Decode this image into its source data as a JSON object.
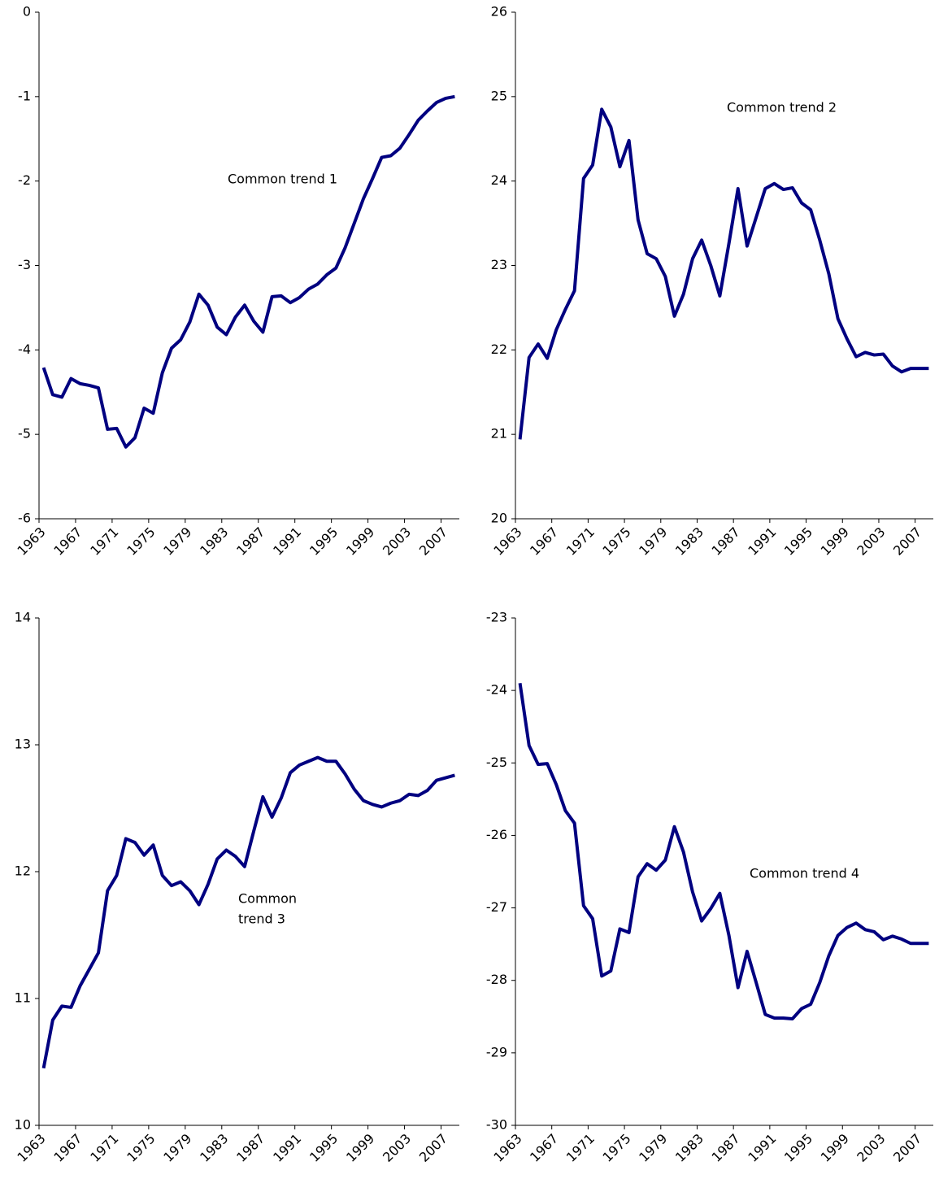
{
  "chart_data": [
    {
      "type": "line",
      "annotation": [
        "Common trend 1"
      ],
      "categories": [
        "1963",
        null,
        null,
        null,
        "1967",
        null,
        null,
        null,
        "1971",
        null,
        null,
        null,
        "1975",
        null,
        null,
        null,
        "1979",
        null,
        null,
        null,
        "1983",
        null,
        null,
        null,
        "1987",
        null,
        null,
        null,
        "1991",
        null,
        null,
        null,
        "1995",
        null,
        null,
        null,
        "1999",
        null,
        null,
        null,
        "2003",
        null,
        null,
        null,
        "2007",
        null
      ],
      "series": [
        {
          "color": "#000080",
          "values": [
            -4.21,
            -4.53,
            -4.56,
            -4.34,
            -4.4,
            -4.42,
            -4.45,
            -4.94,
            -4.93,
            -5.15,
            -5.04,
            -4.69,
            -4.75,
            -4.27,
            -3.98,
            -3.88,
            -3.67,
            -3.34,
            -3.47,
            -3.73,
            -3.82,
            -3.61,
            -3.47,
            -3.66,
            -3.79,
            -3.37,
            -3.36,
            -3.44,
            -3.38,
            -3.28,
            -3.22,
            -3.11,
            -3.03,
            -2.79,
            -2.5,
            -2.21,
            -1.97,
            -1.72,
            -1.7,
            -1.61,
            -1.45,
            -1.28,
            -1.17,
            -1.07,
            -1.02,
            -1.0
          ]
        }
      ],
      "ylim": [
        -6,
        0
      ],
      "yticks": [
        -6,
        -5,
        -4,
        -3,
        -2,
        -1,
        0
      ],
      "grid": false
    },
    {
      "type": "line",
      "annotation": [
        "Common trend 2"
      ],
      "categories": [
        "1963",
        null,
        null,
        null,
        "1967",
        null,
        null,
        null,
        "1971",
        null,
        null,
        null,
        "1975",
        null,
        null,
        null,
        "1979",
        null,
        null,
        null,
        "1983",
        null,
        null,
        null,
        "1987",
        null,
        null,
        null,
        "1991",
        null,
        null,
        null,
        "1995",
        null,
        null,
        null,
        "1999",
        null,
        null,
        null,
        "2003",
        null,
        null,
        null,
        "2007",
        null
      ],
      "series": [
        {
          "color": "#000080",
          "values": [
            20.94,
            21.91,
            22.07,
            21.9,
            22.24,
            22.48,
            22.7,
            24.03,
            24.19,
            24.85,
            24.64,
            24.17,
            24.48,
            23.54,
            23.14,
            23.08,
            22.87,
            22.4,
            22.66,
            23.08,
            23.3,
            23.0,
            22.64,
            23.26,
            23.91,
            23.23,
            23.57,
            23.91,
            23.97,
            23.9,
            23.92,
            23.74,
            23.66,
            23.3,
            22.9,
            22.37,
            22.13,
            21.92,
            21.97,
            21.94,
            21.95,
            21.81,
            21.74,
            21.78,
            21.78,
            21.78
          ]
        }
      ],
      "ylim": [
        20,
        26
      ],
      "yticks": [
        20,
        21,
        22,
        23,
        24,
        25,
        26
      ],
      "grid": false
    },
    {
      "type": "line",
      "annotation": [
        "Common",
        "trend 3"
      ],
      "categories": [
        "1963",
        null,
        null,
        null,
        "1967",
        null,
        null,
        null,
        "1971",
        null,
        null,
        null,
        "1975",
        null,
        null,
        null,
        "1979",
        null,
        null,
        null,
        "1983",
        null,
        null,
        null,
        "1987",
        null,
        null,
        null,
        "1991",
        null,
        null,
        null,
        "1995",
        null,
        null,
        null,
        "1999",
        null,
        null,
        null,
        "2003",
        null,
        null,
        null,
        "2007",
        null
      ],
      "series": [
        {
          "color": "#000080",
          "values": [
            10.45,
            10.83,
            10.94,
            10.93,
            11.1,
            11.23,
            11.36,
            11.85,
            11.97,
            12.26,
            12.23,
            12.13,
            12.21,
            11.97,
            11.89,
            11.92,
            11.85,
            11.74,
            11.9,
            12.1,
            12.17,
            12.12,
            12.04,
            12.32,
            12.59,
            12.43,
            12.58,
            12.78,
            12.84,
            12.87,
            12.9,
            12.87,
            12.87,
            12.77,
            12.65,
            12.56,
            12.53,
            12.51,
            12.54,
            12.56,
            12.61,
            12.6,
            12.64,
            12.72,
            12.74,
            12.76
          ]
        }
      ],
      "ylim": [
        10,
        14
      ],
      "yticks": [
        10,
        11,
        12,
        13,
        14
      ],
      "grid": false
    },
    {
      "type": "line",
      "annotation": [
        "Common trend 4"
      ],
      "categories": [
        "1963",
        null,
        null,
        null,
        "1967",
        null,
        null,
        null,
        "1971",
        null,
        null,
        null,
        "1975",
        null,
        null,
        null,
        "1979",
        null,
        null,
        null,
        "1983",
        null,
        null,
        null,
        "1987",
        null,
        null,
        null,
        "1991",
        null,
        null,
        null,
        "1995",
        null,
        null,
        null,
        "1999",
        null,
        null,
        null,
        "2003",
        null,
        null,
        null,
        "2007",
        null
      ],
      "series": [
        {
          "color": "#000080",
          "values": [
            -23.9,
            -24.76,
            -25.02,
            -25.01,
            -25.3,
            -25.66,
            -25.83,
            -26.97,
            -27.15,
            -27.94,
            -27.87,
            -27.29,
            -27.34,
            -26.57,
            -26.39,
            -26.48,
            -26.34,
            -25.88,
            -26.23,
            -26.78,
            -27.18,
            -27.01,
            -26.8,
            -27.38,
            -28.1,
            -27.6,
            -28.03,
            -28.47,
            -28.52,
            -28.52,
            -28.53,
            -28.39,
            -28.33,
            -28.03,
            -27.66,
            -27.38,
            -27.27,
            -27.21,
            -27.3,
            -27.33,
            -27.44,
            -27.39,
            -27.43,
            -27.49,
            -27.49,
            -27.49
          ]
        }
      ],
      "ylim": [
        -30,
        -23
      ],
      "yticks": [
        -30,
        -29,
        -28,
        -27,
        -26,
        -25,
        -24,
        -23
      ],
      "grid": false
    }
  ]
}
